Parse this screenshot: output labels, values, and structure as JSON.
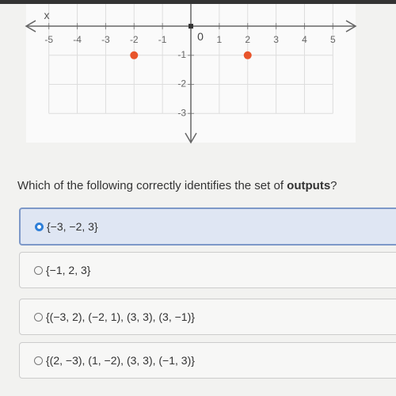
{
  "chart_data": {
    "type": "scatter",
    "x_label": "x",
    "origin_label": "0",
    "x": [
      -2,
      2
    ],
    "values": [
      -1,
      -1
    ],
    "color": "#e8542b",
    "xlim": [
      -5.8,
      5.8
    ],
    "xticks": [
      -5,
      -4,
      -3,
      -2,
      -1,
      1,
      2,
      3,
      4,
      5
    ],
    "ylim": [
      -4,
      0.9
    ],
    "yticks": [
      -3,
      -2,
      -1
    ],
    "grid": true
  },
  "question": {
    "before": "Which of the following correctly identifies the set of ",
    "bold": "outputs",
    "after": "?"
  },
  "options": [
    "{−3, −2, 3}",
    "{−1, 2, 3}",
    "{(−3, 2), (−2, 1), (3, 3), (3, −1)}",
    "{(2, −3), (1, −2), (3, 3), (−1, 3)}"
  ]
}
